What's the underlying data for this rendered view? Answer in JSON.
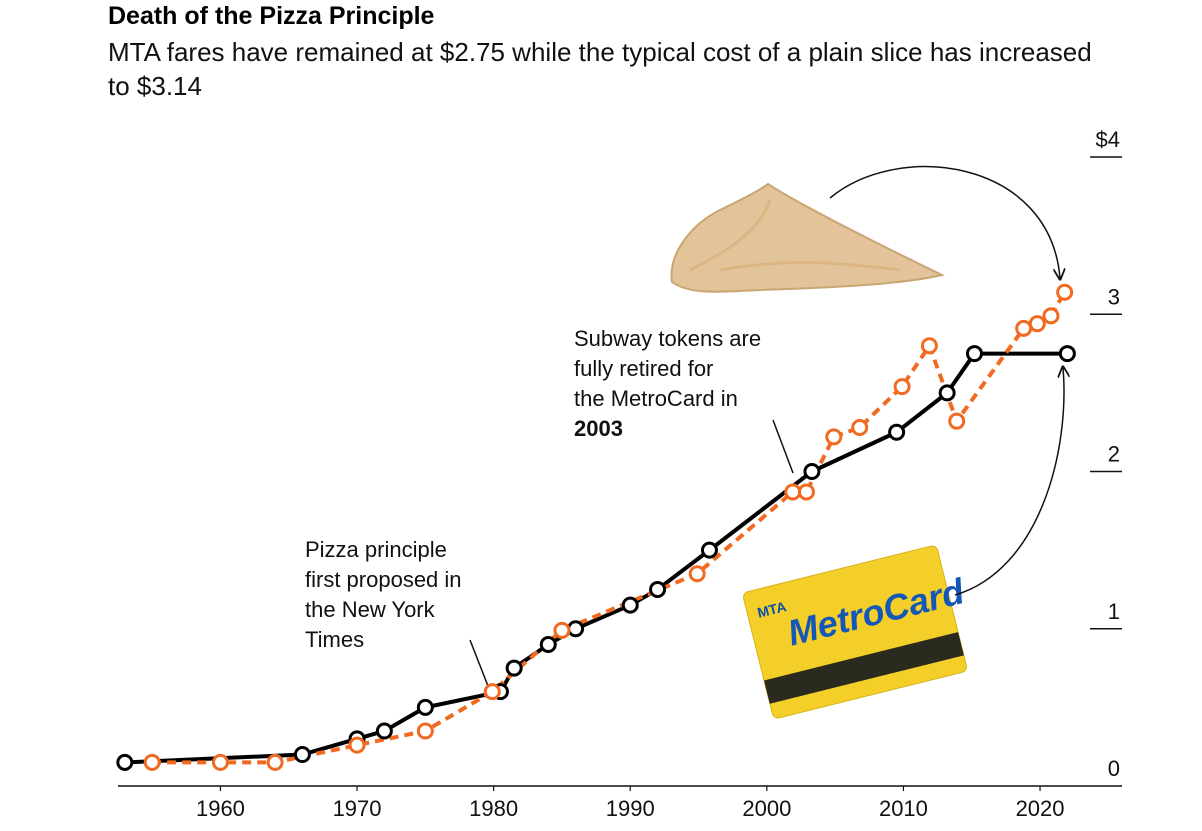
{
  "chart_data": {
    "type": "line",
    "title": "Death of the Pizza Principle",
    "subtitle": "MTA fares have remained at $2.75 while the typical cost of a plain slice has increased to $3.14",
    "xlim": [
      1952.5,
      2026
    ],
    "xticks": [
      1960,
      1970,
      1980,
      1990,
      2000,
      2010,
      2020
    ],
    "ylim": [
      0,
      4
    ],
    "yticks": [
      0,
      1,
      2,
      3,
      {
        "value": 4,
        "label": "$4"
      }
    ],
    "series": [
      {
        "color": "#000000",
        "dashed": false,
        "x": [
          1953,
          1966,
          1970,
          1972,
          1975,
          1980.5,
          1981.5,
          1984,
          1986,
          1990,
          1992,
          1995.8,
          2003.3,
          2009.5,
          2013.2,
          2015.2,
          2022
        ],
        "values": [
          0.15,
          0.2,
          0.3,
          0.35,
          0.5,
          0.6,
          0.75,
          0.9,
          1.0,
          1.15,
          1.25,
          1.5,
          2.0,
          2.25,
          2.5,
          2.75,
          2.75
        ]
      },
      {
        "color": "#f26a21",
        "dashed": true,
        "x": [
          1955,
          1960,
          1964,
          1970,
          1975,
          1979.9,
          1985,
          1994.9,
          2001.9,
          2002.9,
          2004.9,
          2006.8,
          2009.9,
          2011.9,
          2013.9,
          2018.8,
          2019.8,
          2020.8,
          2021.8
        ],
        "values": [
          0.15,
          0.15,
          0.15,
          0.26,
          0.35,
          0.6,
          0.99,
          1.35,
          1.87,
          1.87,
          2.22,
          2.28,
          2.54,
          2.8,
          2.32,
          2.91,
          2.94,
          2.99,
          3.14
        ]
      }
    ],
    "annotations": [
      {
        "lines": [
          "Pizza principle",
          "first proposed in",
          "the New York",
          "Times"
        ]
      },
      {
        "lines": [
          "Subway tokens are",
          "fully retired for",
          "the MetroCard in",
          "2003"
        ]
      }
    ],
    "card_text": [
      "MTA",
      "MetroCard"
    ]
  }
}
